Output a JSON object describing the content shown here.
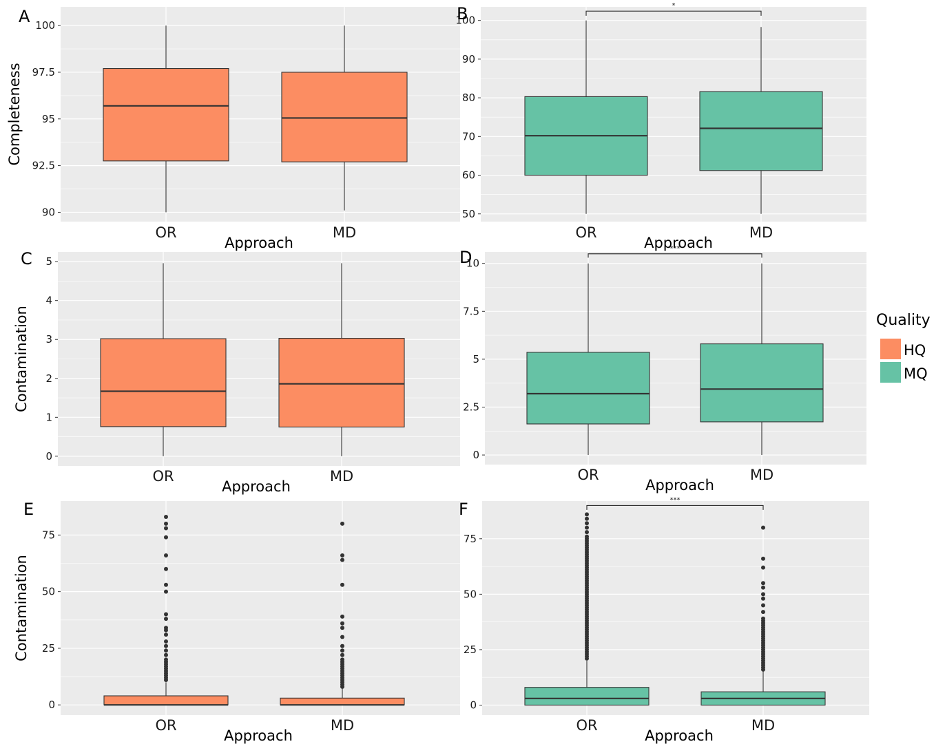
{
  "colors": {
    "HQ": "#FC8D62",
    "MQ": "#66C2A5",
    "panel_bg": "#EBEBEB",
    "grid": "#FFFFFF",
    "ink": "#333333"
  },
  "legend": {
    "title": "Quality",
    "items": [
      {
        "label": "HQ",
        "color": "#FC8D62"
      },
      {
        "label": "MQ",
        "color": "#66C2A5"
      }
    ]
  },
  "chart_data": [
    {
      "panel": "A",
      "type": "box",
      "quality": "HQ",
      "ylabel": "Completeness",
      "xlabel": "Approach",
      "ylim": [
        89.5,
        101
      ],
      "yticks": [
        90,
        92.5,
        95,
        97.5,
        100
      ],
      "ytick_labels": [
        "90",
        "92.5",
        "95",
        "97.5",
        "100"
      ],
      "categories": [
        "OR",
        "MD"
      ],
      "boxes": [
        {
          "category": "OR",
          "min": 90,
          "q1": 92.75,
          "median": 95.7,
          "q3": 97.7,
          "max": 100,
          "outliers": []
        },
        {
          "category": "MD",
          "min": 90.1,
          "q1": 92.7,
          "median": 95.05,
          "q3": 97.5,
          "max": 100,
          "outliers": []
        }
      ],
      "significance": null
    },
    {
      "panel": "B",
      "type": "box",
      "quality": "MQ",
      "ylabel": "",
      "xlabel": "Approach",
      "ylim": [
        48,
        103.5
      ],
      "yticks": [
        50,
        60,
        70,
        80,
        90,
        100
      ],
      "ytick_labels": [
        "50",
        "60",
        "70",
        "80",
        "90",
        "100"
      ],
      "categories": [
        "OR",
        "MD"
      ],
      "boxes": [
        {
          "category": "OR",
          "min": 50,
          "q1": 60,
          "median": 70.2,
          "q3": 80.3,
          "max": 100,
          "outliers": []
        },
        {
          "category": "MD",
          "min": 50,
          "q1": 61.2,
          "median": 72.1,
          "q3": 81.6,
          "max": 98.3,
          "outliers": []
        }
      ],
      "significance": {
        "label": "*",
        "value": 102.4,
        "tick_bottom": 101.2
      }
    },
    {
      "panel": "C",
      "type": "box",
      "quality": "HQ",
      "ylabel": "Contamination",
      "xlabel": "Approach",
      "ylim": [
        -0.25,
        5.25
      ],
      "yticks": [
        0,
        1,
        2,
        3,
        4,
        5
      ],
      "ytick_labels": [
        "0",
        "1",
        "2",
        "3",
        "4",
        "5"
      ],
      "categories": [
        "OR",
        "MD"
      ],
      "boxes": [
        {
          "category": "OR",
          "min": 0,
          "q1": 0.76,
          "median": 1.67,
          "q3": 3.02,
          "max": 4.96,
          "outliers": []
        },
        {
          "category": "MD",
          "min": 0,
          "q1": 0.75,
          "median": 1.86,
          "q3": 3.03,
          "max": 4.96,
          "outliers": []
        }
      ],
      "significance": null
    },
    {
      "panel": "D",
      "type": "box",
      "quality": "MQ",
      "ylabel": "",
      "xlabel": "Approach",
      "ylim": [
        -0.5,
        10.6
      ],
      "yticks": [
        0,
        2.5,
        5,
        7.5,
        10
      ],
      "ytick_labels": [
        "0",
        "2.5",
        "5",
        "7.5",
        "10"
      ],
      "categories": [
        "OR",
        "MD"
      ],
      "boxes": [
        {
          "category": "OR",
          "min": 0,
          "q1": 1.62,
          "median": 3.2,
          "q3": 5.36,
          "max": 10,
          "outliers": []
        },
        {
          "category": "MD",
          "min": 0,
          "q1": 1.73,
          "median": 3.44,
          "q3": 5.8,
          "max": 10,
          "outliers": []
        }
      ],
      "significance": {
        "label": "***",
        "value": 10.5,
        "tick_bottom": 10.3
      }
    },
    {
      "panel": "E",
      "type": "box",
      "quality": "HQ",
      "ylabel": "Contamination",
      "xlabel": "Approach",
      "ylim": [
        -4.5,
        90
      ],
      "yticks": [
        0,
        25,
        50,
        75
      ],
      "ytick_labels": [
        "0",
        "25",
        "50",
        "75"
      ],
      "categories": [
        "OR",
        "MD"
      ],
      "boxes": [
        {
          "category": "OR",
          "min": 0,
          "q1": 0,
          "median": 0,
          "q3": 4,
          "max": 10,
          "outliers": [
            11,
            12,
            13,
            14,
            15,
            16,
            17,
            18,
            19,
            20,
            22,
            24,
            26,
            28,
            31,
            33,
            34,
            38,
            40,
            50,
            53,
            60,
            66,
            74,
            78,
            80,
            83
          ]
        },
        {
          "category": "MD",
          "min": 0,
          "q1": 0,
          "median": 0,
          "q3": 3,
          "max": 7.5,
          "outliers": [
            8,
            9,
            10,
            11,
            12,
            13,
            14,
            15,
            16,
            17,
            18,
            19,
            20,
            22,
            24,
            26,
            30,
            34,
            36,
            39,
            53,
            64,
            66,
            80
          ]
        }
      ],
      "significance": null
    },
    {
      "panel": "F",
      "type": "box",
      "quality": "MQ",
      "ylabel": "",
      "xlabel": "Approach",
      "ylim": [
        -4.5,
        92
      ],
      "yticks": [
        0,
        25,
        50,
        75
      ],
      "ytick_labels": [
        "0",
        "25",
        "50",
        "75"
      ],
      "categories": [
        "OR",
        "MD"
      ],
      "boxes": [
        {
          "category": "OR",
          "min": 0,
          "q1": 0,
          "median": 3,
          "q3": 8,
          "max": 20,
          "outliers": [
            21,
            22,
            23,
            24,
            25,
            26,
            27,
            28,
            29,
            30,
            31,
            32,
            33,
            34,
            35,
            36,
            37,
            38,
            39,
            40,
            41,
            42,
            43,
            44,
            45,
            46,
            47,
            48,
            49,
            50,
            51,
            52,
            53,
            54,
            55,
            56,
            57,
            58,
            59,
            60,
            61,
            62,
            63,
            64,
            65,
            66,
            67,
            68,
            69,
            70,
            71,
            72,
            73,
            74,
            75,
            76,
            78,
            80,
            82,
            84,
            86
          ]
        },
        {
          "category": "MD",
          "min": 0,
          "q1": 0,
          "median": 3,
          "q3": 6,
          "max": 15.5,
          "outliers": [
            16,
            17,
            18,
            19,
            20,
            21,
            22,
            23,
            24,
            25,
            26,
            27,
            28,
            29,
            30,
            31,
            32,
            33,
            34,
            35,
            36,
            37,
            38,
            39,
            42,
            45,
            48,
            50,
            53,
            55,
            62,
            66,
            80
          ]
        }
      ],
      "significance": {
        "label": "***",
        "value": 90,
        "tick_bottom": 88
      }
    }
  ]
}
